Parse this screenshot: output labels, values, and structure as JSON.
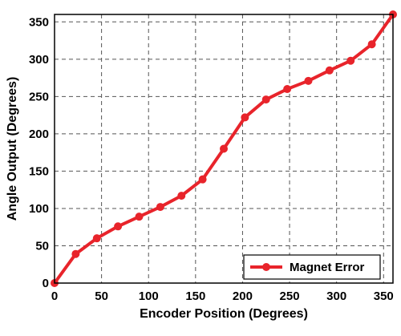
{
  "chart_data": {
    "type": "line",
    "title": "",
    "xlabel": "Encoder Position (Degrees)",
    "ylabel": "Angle Output (Degrees)",
    "xlim": [
      0,
      360
    ],
    "ylim": [
      0,
      360
    ],
    "x_ticks": [
      0,
      50,
      100,
      150,
      200,
      250,
      300,
      350
    ],
    "y_ticks": [
      0,
      50,
      100,
      150,
      200,
      250,
      300,
      350
    ],
    "grid": true,
    "grid_style": "dashed",
    "legend_position": "bottom-right",
    "series": [
      {
        "name": "Magnet Error",
        "color": "#e8242b",
        "x": [
          0,
          22.5,
          45,
          67.5,
          90,
          112.5,
          135,
          157.5,
          180,
          202.5,
          225,
          247.5,
          270,
          292.5,
          315,
          337.5,
          360
        ],
        "y": [
          0,
          39,
          60,
          76,
          89,
          102,
          117,
          139,
          180,
          222,
          246,
          260,
          271,
          285,
          298,
          320,
          360
        ]
      }
    ]
  }
}
